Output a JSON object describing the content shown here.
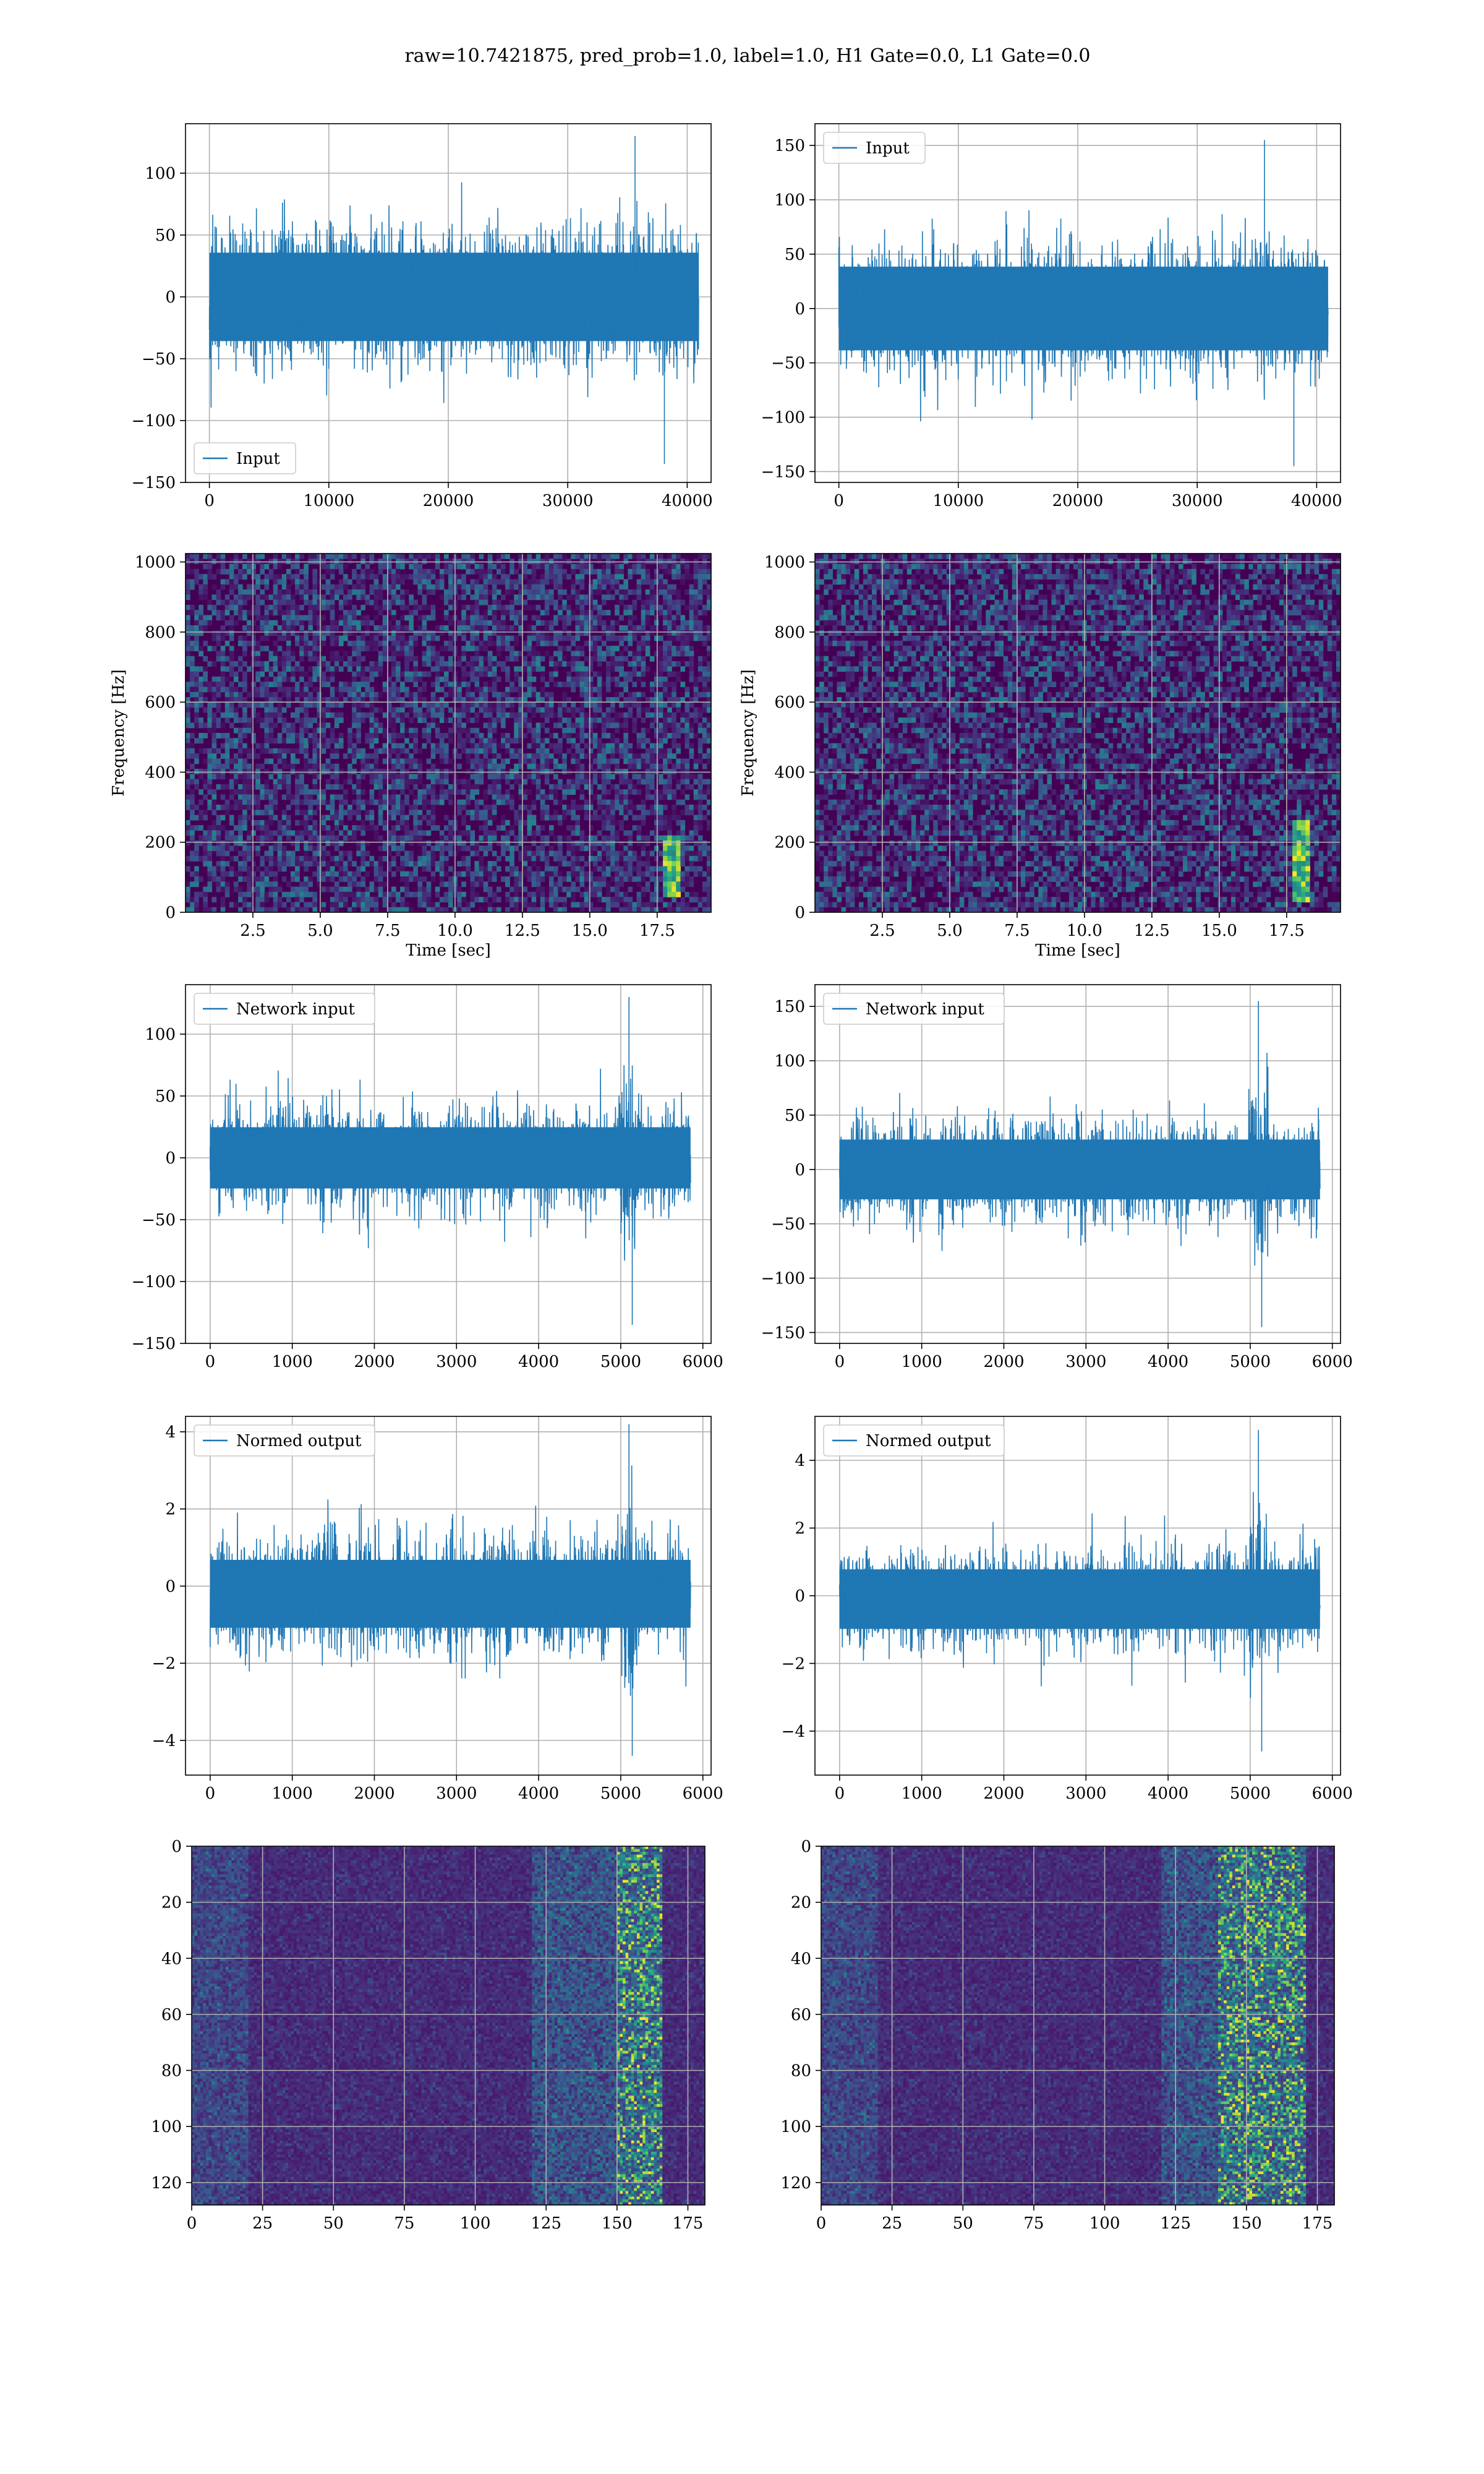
{
  "figure_title": "raw=10.7421875, pred_prob=1.0, label=1.0, H1 Gate=0.0, L1 Gate=0.0",
  "colors": {
    "line": "#1f77b4",
    "grid": "#b0b0b0",
    "viridis_dark": "#440154",
    "viridis_bright": "#fde725"
  },
  "chart_data": [
    {
      "id": "h1-input",
      "type": "line",
      "legend_loc": "lower left",
      "series": [
        {
          "name": "Input"
        }
      ],
      "xlim": [
        -2000,
        42000
      ],
      "ylim": [
        -150,
        140
      ],
      "xticks": [
        0,
        10000,
        20000,
        30000,
        40000
      ],
      "xticklabels": [
        "0",
        "10000",
        "20000",
        "30000",
        "40000"
      ],
      "yticks": [
        -150,
        -100,
        -50,
        0,
        50,
        100
      ],
      "yticklabels": [
        "−150",
        "−100",
        "−50",
        "0",
        "50",
        "100"
      ],
      "signal": {
        "x_start": 0,
        "x_end": 40960,
        "amp_bulk": 65,
        "peak_max": 130,
        "peak_min": -135,
        "center": 0
      },
      "grid": true
    },
    {
      "id": "l1-input",
      "type": "line",
      "legend_loc": "upper left",
      "series": [
        {
          "name": "Input"
        }
      ],
      "xlim": [
        -2000,
        42000
      ],
      "ylim": [
        -160,
        170
      ],
      "xticks": [
        0,
        10000,
        20000,
        30000,
        40000
      ],
      "xticklabels": [
        "0",
        "10000",
        "20000",
        "30000",
        "40000"
      ],
      "yticks": [
        -150,
        -100,
        -50,
        0,
        50,
        100,
        150
      ],
      "yticklabels": [
        "−150",
        "−100",
        "−50",
        "0",
        "50",
        "100",
        "150"
      ],
      "signal": {
        "x_start": 0,
        "x_end": 40960,
        "amp_bulk": 70,
        "peak_max": 155,
        "peak_min": -145,
        "center": 0
      },
      "grid": true
    },
    {
      "id": "h1-spectrogram",
      "type": "heatmap",
      "xlabel": "Time [sec]",
      "ylabel": "Frequency [Hz]",
      "xlim": [
        0,
        19.5
      ],
      "ylim": [
        0,
        1024
      ],
      "xticks": [
        2.5,
        5.0,
        7.5,
        10.0,
        12.5,
        15.0,
        17.5
      ],
      "xticklabels": [
        "2.5",
        "5.0",
        "7.5",
        "10.0",
        "12.5",
        "15.0",
        "17.5"
      ],
      "yticks": [
        0,
        200,
        400,
        600,
        800,
        1000
      ],
      "yticklabels": [
        "0",
        "200",
        "400",
        "600",
        "800",
        "1000"
      ],
      "chirp": {
        "t": 18.0,
        "f_low": 40,
        "f_high": 220
      },
      "grid": true
    },
    {
      "id": "l1-spectrogram",
      "type": "heatmap",
      "xlabel": "Time [sec]",
      "ylabel": "Frequency [Hz]",
      "xlim": [
        0,
        19.5
      ],
      "ylim": [
        0,
        1024
      ],
      "xticks": [
        2.5,
        5.0,
        7.5,
        10.0,
        12.5,
        15.0,
        17.5
      ],
      "xticklabels": [
        "2.5",
        "5.0",
        "7.5",
        "10.0",
        "12.5",
        "15.0",
        "17.5"
      ],
      "yticks": [
        0,
        200,
        400,
        600,
        800,
        1000
      ],
      "yticklabels": [
        "0",
        "200",
        "400",
        "600",
        "800",
        "1000"
      ],
      "chirp": {
        "t": 18.0,
        "f_low": 30,
        "f_high": 260
      },
      "grid": true
    },
    {
      "id": "h1-network-input",
      "type": "line",
      "legend_loc": "upper left",
      "series": [
        {
          "name": "Network input"
        }
      ],
      "xlim": [
        -300,
        6100
      ],
      "ylim": [
        -150,
        140
      ],
      "xticks": [
        0,
        1000,
        2000,
        3000,
        4000,
        5000,
        6000
      ],
      "xticklabels": [
        "0",
        "1000",
        "2000",
        "3000",
        "4000",
        "5000",
        "6000"
      ],
      "yticks": [
        -150,
        -100,
        -50,
        0,
        50,
        100
      ],
      "yticklabels": [
        "−150",
        "−100",
        "−50",
        "0",
        "50",
        "100"
      ],
      "signal": {
        "x_start": 0,
        "x_end": 5850,
        "amp_bulk": 45,
        "peak_max": 130,
        "peak_min": -135,
        "center": 0,
        "burst_x": 5100
      },
      "grid": true
    },
    {
      "id": "l1-network-input",
      "type": "line",
      "legend_loc": "upper left",
      "series": [
        {
          "name": "Network input"
        }
      ],
      "xlim": [
        -300,
        6100
      ],
      "ylim": [
        -160,
        170
      ],
      "xticks": [
        0,
        1000,
        2000,
        3000,
        4000,
        5000,
        6000
      ],
      "xticklabels": [
        "0",
        "1000",
        "2000",
        "3000",
        "4000",
        "5000",
        "6000"
      ],
      "yticks": [
        -150,
        -100,
        -50,
        0,
        50,
        100,
        150
      ],
      "yticklabels": [
        "−150",
        "−100",
        "−50",
        "0",
        "50",
        "100",
        "150"
      ],
      "signal": {
        "x_start": 0,
        "x_end": 5850,
        "amp_bulk": 50,
        "peak_max": 155,
        "peak_min": -145,
        "center": 0,
        "burst_x": 5100
      },
      "grid": true
    },
    {
      "id": "h1-normed-output",
      "type": "line",
      "legend_loc": "upper left",
      "series": [
        {
          "name": "Normed output"
        }
      ],
      "xlim": [
        -300,
        6100
      ],
      "ylim": [
        -4.9,
        4.4
      ],
      "xticks": [
        0,
        1000,
        2000,
        3000,
        4000,
        5000,
        6000
      ],
      "xticklabels": [
        "0",
        "1000",
        "2000",
        "3000",
        "4000",
        "5000",
        "6000"
      ],
      "yticks": [
        -4,
        -2,
        0,
        2,
        4
      ],
      "yticklabels": [
        "−4",
        "−2",
        "0",
        "2",
        "4"
      ],
      "signal": {
        "x_start": 0,
        "x_end": 5850,
        "amp_bulk": 1.6,
        "peak_max": 4.2,
        "peak_min": -4.4,
        "center": -0.2,
        "burst_x": 5100
      },
      "grid": true
    },
    {
      "id": "l1-normed-output",
      "type": "line",
      "legend_loc": "upper left",
      "series": [
        {
          "name": "Normed output"
        }
      ],
      "xlim": [
        -300,
        6100
      ],
      "ylim": [
        -5.3,
        5.3
      ],
      "xticks": [
        0,
        1000,
        2000,
        3000,
        4000,
        5000,
        6000
      ],
      "xticklabels": [
        "0",
        "1000",
        "2000",
        "3000",
        "4000",
        "5000",
        "6000"
      ],
      "yticks": [
        -4,
        -2,
        0,
        2,
        4
      ],
      "yticklabels": [
        "−4",
        "−2",
        "0",
        "2",
        "4"
      ],
      "signal": {
        "x_start": 0,
        "x_end": 5850,
        "amp_bulk": 1.6,
        "peak_max": 4.9,
        "peak_min": -4.6,
        "center": -0.1,
        "burst_x": 5100
      },
      "grid": true
    },
    {
      "id": "h1-feature-map",
      "type": "heatmap",
      "xlim": [
        0,
        181
      ],
      "ylim": [
        128,
        0
      ],
      "xticks": [
        0,
        25,
        50,
        75,
        100,
        125,
        150,
        175
      ],
      "xticklabels": [
        "0",
        "25",
        "50",
        "75",
        "100",
        "125",
        "150",
        "175"
      ],
      "yticks": [
        0,
        20,
        40,
        60,
        80,
        100,
        120
      ],
      "yticklabels": [
        "0",
        "20",
        "40",
        "60",
        "80",
        "100",
        "120"
      ],
      "bright_columns": [
        150,
        165
      ],
      "grid": true
    },
    {
      "id": "l1-feature-map",
      "type": "heatmap",
      "xlim": [
        0,
        181
      ],
      "ylim": [
        128,
        0
      ],
      "xticks": [
        0,
        25,
        50,
        75,
        100,
        125,
        150,
        175
      ],
      "xticklabels": [
        "0",
        "25",
        "50",
        "75",
        "100",
        "125",
        "150",
        "175"
      ],
      "yticks": [
        0,
        20,
        40,
        60,
        80,
        100,
        120
      ],
      "yticklabels": [
        "0",
        "20",
        "40",
        "60",
        "80",
        "100",
        "120"
      ],
      "bright_columns": [
        140,
        170
      ],
      "grid": true
    }
  ]
}
